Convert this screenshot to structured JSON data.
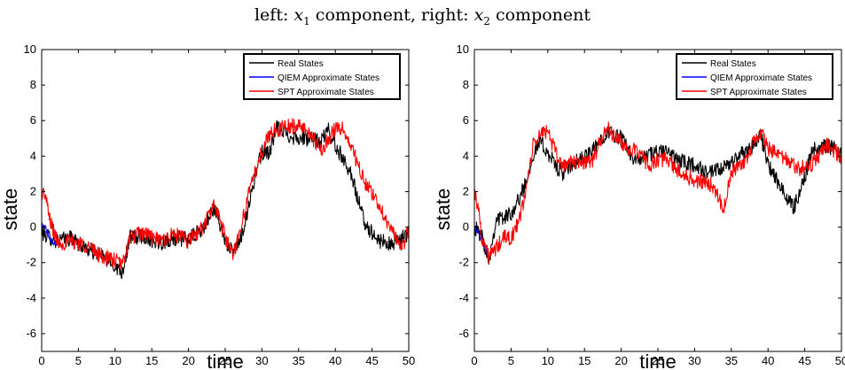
{
  "title": {
    "part1": "left: ",
    "var1": "x",
    "sub1": "1",
    "part2": " component, right: ",
    "var2": "x",
    "sub2": "2",
    "part3": " component"
  },
  "chart_data": [
    {
      "type": "line",
      "xlabel": "time",
      "ylabel": "state",
      "xlim": [
        0,
        50
      ],
      "ylim": [
        -7,
        10
      ],
      "xticks": [
        0,
        5,
        10,
        15,
        20,
        25,
        30,
        35,
        40,
        45,
        50
      ],
      "yticks": [
        10,
        8,
        6,
        4,
        2,
        0,
        -2,
        -4,
        -6
      ],
      "legend_position": "top-right",
      "series": [
        {
          "name": "Real States",
          "color": "#000000",
          "x": [
            0,
            2,
            4,
            6,
            8,
            10,
            11,
            12,
            14,
            16,
            18,
            20,
            22,
            23.5,
            25,
            26,
            27,
            28,
            29,
            30,
            31,
            32,
            34,
            36,
            38,
            39,
            40,
            42,
            44,
            46,
            48,
            50
          ],
          "y": [
            -0.3,
            -0.8,
            -0.6,
            -1.2,
            -1.6,
            -2.2,
            -2.5,
            -0.6,
            -0.5,
            -0.9,
            -0.6,
            -0.7,
            -0.1,
            1.1,
            -0.7,
            -1.5,
            -0.8,
            0.8,
            2.8,
            4.2,
            4.2,
            5.6,
            5.1,
            5.0,
            4.8,
            5.5,
            4.6,
            3.2,
            0.2,
            -0.8,
            -1.0,
            -0.3
          ]
        },
        {
          "name": "QIEM Approximate States",
          "color": "#0000ff",
          "x": [
            0,
            0.5,
            1,
            1.5,
            2
          ],
          "y": [
            0.2,
            0,
            -0.5,
            -0.8,
            -1.0
          ]
        },
        {
          "name": "SPT Approximate States",
          "color": "#ff0000",
          "x": [
            0,
            0.5,
            1,
            2,
            3,
            4,
            6,
            8,
            10,
            11,
            12,
            14,
            16,
            18,
            20,
            22,
            23.5,
            25,
            26,
            27,
            28,
            29,
            30,
            31,
            32,
            34,
            36,
            38,
            40,
            41,
            42,
            44,
            46,
            48,
            49,
            50
          ],
          "y": [
            2.0,
            1.8,
            0.6,
            -0.7,
            -0.9,
            -0.8,
            -1.0,
            -1.6,
            -1.9,
            -2.1,
            -0.6,
            -0.3,
            -0.8,
            -0.4,
            -0.8,
            0,
            1.3,
            -0.5,
            -1.6,
            -0.2,
            1.5,
            3.0,
            4.3,
            5.2,
            5.5,
            5.7,
            5.6,
            4.3,
            5.6,
            5.5,
            4.7,
            2.5,
            1.2,
            -0.4,
            -1.3,
            -0.2
          ]
        }
      ]
    },
    {
      "type": "line",
      "xlabel": "time",
      "ylabel": "state",
      "xlim": [
        0,
        50
      ],
      "ylim": [
        -7,
        10
      ],
      "xticks": [
        0,
        5,
        10,
        15,
        20,
        25,
        30,
        35,
        40,
        45,
        50
      ],
      "yticks": [
        10,
        8,
        6,
        4,
        2,
        0,
        -2,
        -4,
        -6
      ],
      "legend_position": "top-right",
      "series": [
        {
          "name": "Real States",
          "color": "#000000",
          "x": [
            0,
            1,
            2,
            3,
            4,
            5,
            6,
            7,
            8,
            9,
            10,
            11,
            12,
            14,
            16,
            18,
            20,
            22,
            24,
            26,
            28,
            30,
            32,
            34,
            36,
            38,
            39,
            40,
            42,
            43.5,
            45,
            46,
            48,
            50
          ],
          "y": [
            0,
            -0.5,
            -1.8,
            0.5,
            0.5,
            0.8,
            1.5,
            2.5,
            4.1,
            4.8,
            4.2,
            3.5,
            3.0,
            3.7,
            4.2,
            5.4,
            5.0,
            3.7,
            4.1,
            4.3,
            3.7,
            3.5,
            3.0,
            3.3,
            4.0,
            4.6,
            5.2,
            3.5,
            2.0,
            1.1,
            2.8,
            4.4,
            4.6,
            4.2
          ]
        },
        {
          "name": "QIEM Approximate States",
          "color": "#0000ff",
          "x": [
            0,
            0.5,
            1,
            1.5,
            2
          ],
          "y": [
            0,
            -0.3,
            -0.8,
            -1.3,
            -1.6
          ]
        },
        {
          "name": "SPT Approximate States",
          "color": "#ff0000",
          "x": [
            0,
            0.5,
            1,
            2,
            3,
            4,
            5,
            6,
            7,
            8,
            9,
            10,
            11,
            12,
            14,
            16,
            18,
            20,
            22,
            24,
            26,
            28,
            30,
            32,
            33,
            34,
            35,
            36,
            37,
            38,
            39,
            40,
            42,
            44,
            46,
            48,
            50
          ],
          "y": [
            2.0,
            1.2,
            -0.5,
            -1.7,
            -1.2,
            -0.6,
            -0.6,
            0.2,
            2.0,
            4.6,
            5.2,
            5.5,
            4.2,
            3.5,
            3.7,
            3.7,
            5.6,
            4.7,
            4.2,
            3.5,
            3.9,
            3.1,
            2.6,
            2.5,
            2.0,
            1.0,
            3.1,
            3.4,
            3.7,
            4.8,
            5.4,
            4.4,
            3.9,
            3.3,
            3.5,
            4.6,
            4.0
          ]
        }
      ]
    }
  ]
}
